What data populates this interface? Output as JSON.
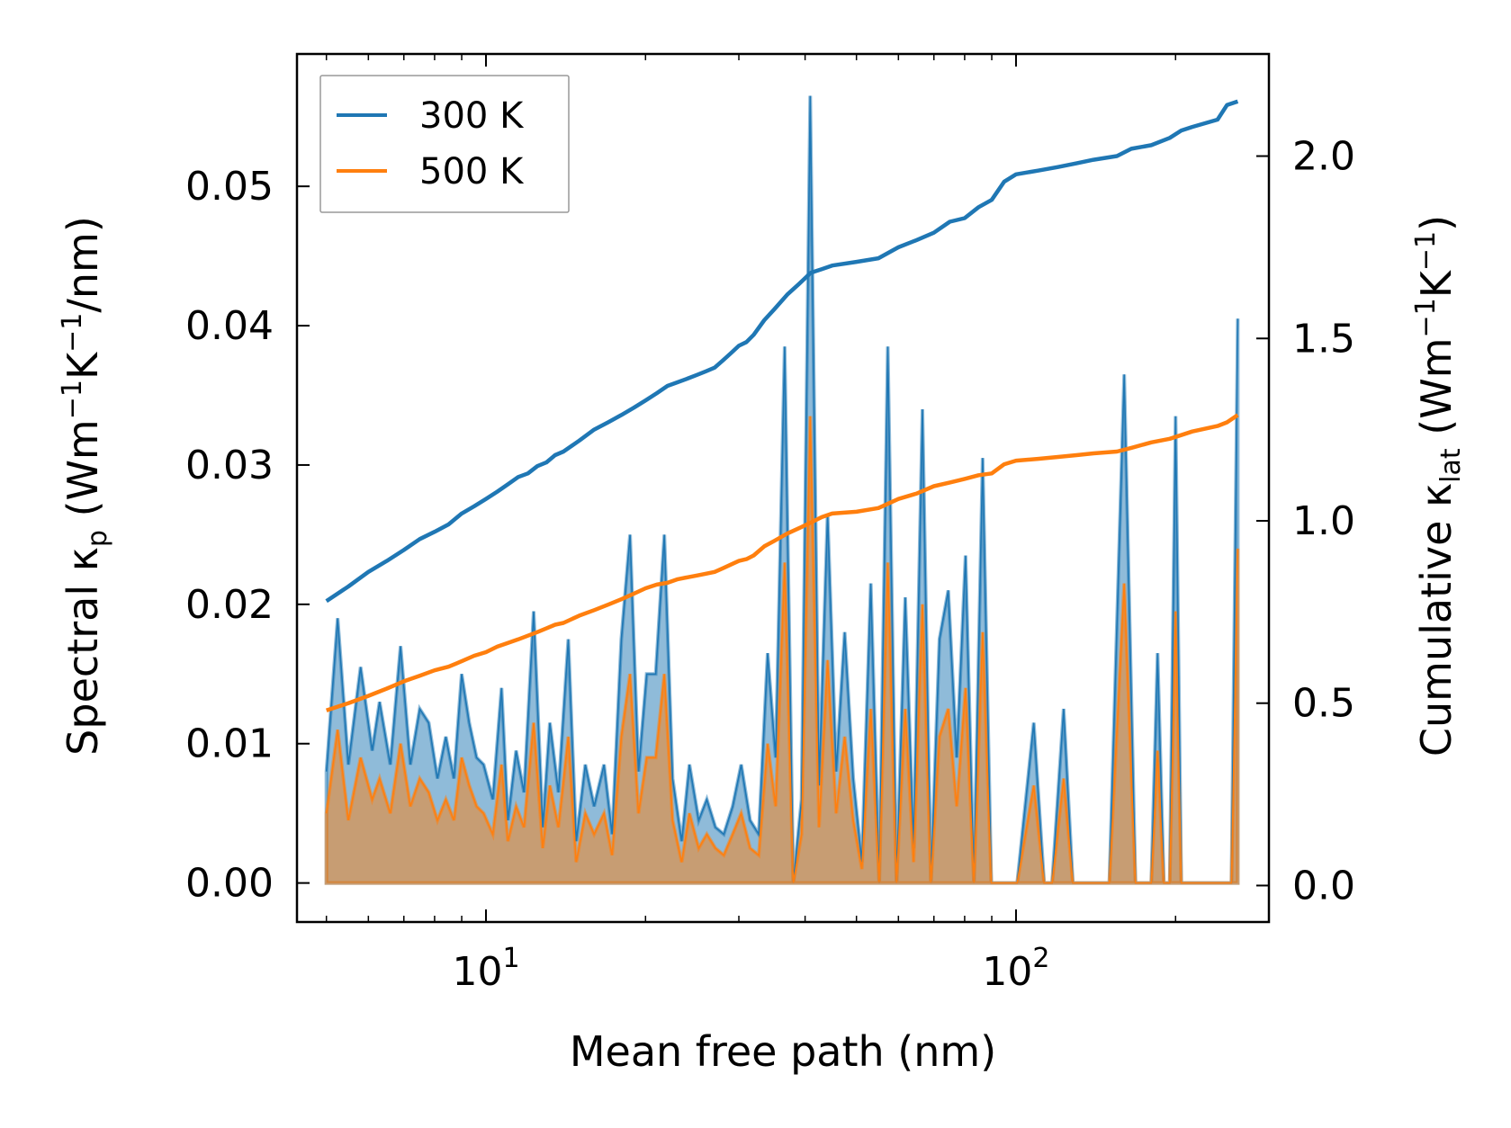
{
  "chart_data": {
    "type": "line",
    "xscale": "log",
    "xlabel": "Mean free path (nm)",
    "ylabel_left": {
      "main": "Spectral κ",
      "sub": "p",
      "unit_pre": " (Wm",
      "sup1": "−1",
      "mid": "K",
      "sup2": "−1",
      "unit_post": "/nm)"
    },
    "ylabel_right": {
      "main": "Cumulative κ",
      "sub": "lat",
      "unit_pre": " (Wm",
      "sup1": "−1",
      "mid": "K",
      "sup2": "−1",
      "unit_post": ")"
    },
    "xlim": [
      4.4,
      300
    ],
    "ylim_left": [
      -0.0028,
      0.0595
    ],
    "ylim_right": [
      -0.1,
      2.28
    ],
    "x_ticks": [
      {
        "value": 10,
        "base": "10",
        "exp": "1"
      },
      {
        "value": 100,
        "base": "10",
        "exp": "2"
      }
    ],
    "y_ticks_left": [
      {
        "value": 0.0,
        "label": "0.00"
      },
      {
        "value": 0.01,
        "label": "0.01"
      },
      {
        "value": 0.02,
        "label": "0.02"
      },
      {
        "value": 0.03,
        "label": "0.03"
      },
      {
        "value": 0.04,
        "label": "0.04"
      },
      {
        "value": 0.05,
        "label": "0.05"
      }
    ],
    "y_ticks_right": [
      {
        "value": 0.0,
        "label": "0.0"
      },
      {
        "value": 0.5,
        "label": "0.5"
      },
      {
        "value": 1.0,
        "label": "1.0"
      },
      {
        "value": 1.5,
        "label": "1.5"
      },
      {
        "value": 2.0,
        "label": "2.0"
      }
    ],
    "legend": [
      {
        "name": "300 K",
        "color": "#1f77b4"
      },
      {
        "name": "500 K",
        "color": "#ff7f0e"
      }
    ],
    "series": [
      {
        "name": "300 K",
        "color": "#1f77b4",
        "spectral": {
          "x": [
            5.0,
            5.25,
            5.5,
            5.8,
            6.1,
            6.3,
            6.6,
            6.9,
            7.2,
            7.5,
            7.8,
            8.1,
            8.4,
            8.7,
            9.0,
            9.3,
            9.6,
            9.9,
            10.3,
            10.7,
            11.0,
            11.4,
            11.8,
            12.3,
            12.8,
            13.2,
            13.7,
            14.3,
            14.8,
            15.4,
            16.0,
            16.7,
            17.3,
            18.0,
            18.7,
            19.4,
            20.1,
            20.9,
            21.7,
            22.5,
            23.4,
            24.2,
            25.2,
            26.1,
            27.1,
            28.1,
            29.2,
            30.3,
            31.5,
            32.7,
            34.0,
            35.2,
            36.6,
            38.0,
            39.4,
            40.9,
            42.5,
            44.1,
            45.8,
            47.5,
            49.3,
            51.2,
            53.2,
            55.2,
            57.3,
            59.5,
            61.8,
            64.1,
            66.6,
            69.1,
            71.7,
            74.5,
            77.3,
            80.3,
            83.3,
            86.5,
            89.8,
            93.2,
            96.8,
            100.5,
            108,
            113,
            117,
            123,
            128,
            133,
            140,
            150,
            160,
            168,
            175,
            180,
            185,
            190,
            195,
            200,
            205,
            212,
            230,
            255,
            262
          ],
          "values": [
            0.008,
            0.019,
            0.0085,
            0.0155,
            0.0095,
            0.013,
            0.0085,
            0.017,
            0.0085,
            0.0125,
            0.0115,
            0.0075,
            0.0105,
            0.0075,
            0.015,
            0.0115,
            0.009,
            0.0085,
            0.006,
            0.014,
            0.0045,
            0.0095,
            0.0065,
            0.0195,
            0.004,
            0.0115,
            0.0065,
            0.0175,
            0.003,
            0.0085,
            0.0055,
            0.0085,
            0.0035,
            0.0175,
            0.025,
            0.008,
            0.015,
            0.015,
            0.025,
            0.0075,
            0.003,
            0.0085,
            0.0045,
            0.006,
            0.004,
            0.0035,
            0.0055,
            0.0085,
            0.0045,
            0.0035,
            0.0165,
            0.009,
            0.0385,
            0.0,
            0.006,
            0.0565,
            0.007,
            0.0265,
            0.008,
            0.018,
            0.0075,
            0.0015,
            0.0215,
            0.0,
            0.0385,
            0.0,
            0.0205,
            0.0025,
            0.034,
            0.0,
            0.0175,
            0.021,
            0.009,
            0.0235,
            0.0,
            0.0305,
            0.0,
            0.0,
            0.0,
            0.0,
            0.0115,
            0.0,
            0.0,
            0.0125,
            0.0,
            0.0,
            0.0,
            0.0,
            0.0365,
            0.0,
            0.0,
            0.0,
            0.0165,
            0.0,
            0.0,
            0.0335,
            0.0,
            0.0,
            0.0,
            0.0,
            0.0405
          ]
        },
        "cumulative": {
          "x": [
            5.0,
            5.5,
            6.0,
            6.5,
            7.0,
            7.5,
            8.0,
            8.5,
            9.0,
            9.5,
            10.0,
            10.5,
            11.0,
            11.5,
            12.0,
            12.5,
            13.0,
            13.5,
            14.0,
            15.0,
            16.0,
            17.0,
            18.0,
            19.0,
            20.0,
            21.0,
            22.0,
            23.0,
            24.0,
            25.0,
            26.0,
            27.0,
            28.0,
            29.0,
            30.0,
            31.0,
            32.0,
            33.5,
            35.0,
            37.0,
            39.0,
            41.0,
            43.0,
            45.0,
            50.0,
            55.0,
            60.0,
            65.0,
            70.0,
            75.0,
            80.0,
            85.0,
            90.0,
            95.0,
            100.0,
            110.0,
            120.0,
            130.0,
            140.0,
            155.0,
            165.0,
            180.0,
            195.0,
            205.0,
            215.0,
            240.0,
            250.0,
            262.0
          ],
          "values": [
            0.78,
            0.82,
            0.86,
            0.89,
            0.92,
            0.95,
            0.97,
            0.99,
            1.02,
            1.04,
            1.06,
            1.08,
            1.1,
            1.12,
            1.13,
            1.15,
            1.16,
            1.18,
            1.19,
            1.22,
            1.25,
            1.27,
            1.29,
            1.31,
            1.33,
            1.35,
            1.37,
            1.38,
            1.39,
            1.4,
            1.41,
            1.42,
            1.44,
            1.46,
            1.48,
            1.49,
            1.51,
            1.55,
            1.58,
            1.62,
            1.65,
            1.68,
            1.69,
            1.7,
            1.71,
            1.72,
            1.75,
            1.77,
            1.79,
            1.82,
            1.83,
            1.86,
            1.88,
            1.93,
            1.95,
            1.96,
            1.97,
            1.98,
            1.99,
            2.0,
            2.02,
            2.03,
            2.05,
            2.07,
            2.08,
            2.1,
            2.14,
            2.15
          ]
        }
      },
      {
        "name": "500 K",
        "color": "#ff7f0e",
        "spectral": {
          "x": [
            5.0,
            5.25,
            5.5,
            5.8,
            6.1,
            6.3,
            6.6,
            6.9,
            7.2,
            7.5,
            7.8,
            8.1,
            8.4,
            8.7,
            9.0,
            9.3,
            9.6,
            9.9,
            10.3,
            10.7,
            11.0,
            11.4,
            11.8,
            12.3,
            12.8,
            13.2,
            13.7,
            14.3,
            14.8,
            15.4,
            16.0,
            16.7,
            17.3,
            18.0,
            18.7,
            19.4,
            20.1,
            20.9,
            21.7,
            22.5,
            23.4,
            24.2,
            25.2,
            26.1,
            27.1,
            28.1,
            29.2,
            30.3,
            31.5,
            32.7,
            34.0,
            35.2,
            36.6,
            38.0,
            39.4,
            40.9,
            42.5,
            44.1,
            45.8,
            47.5,
            49.3,
            51.2,
            53.2,
            55.2,
            57.3,
            59.5,
            61.8,
            64.1,
            66.6,
            69.1,
            71.7,
            74.5,
            77.3,
            80.3,
            83.3,
            86.5,
            89.8,
            93.2,
            96.8,
            100.5,
            108,
            113,
            117,
            123,
            128,
            133,
            140,
            150,
            160,
            168,
            175,
            180,
            185,
            190,
            195,
            200,
            205,
            212,
            230,
            255,
            262
          ],
          "values": [
            0.005,
            0.011,
            0.0045,
            0.009,
            0.006,
            0.0075,
            0.005,
            0.01,
            0.0055,
            0.0075,
            0.0065,
            0.0045,
            0.006,
            0.0045,
            0.009,
            0.007,
            0.0055,
            0.005,
            0.0035,
            0.0085,
            0.003,
            0.0055,
            0.004,
            0.0115,
            0.0025,
            0.007,
            0.004,
            0.0105,
            0.0015,
            0.005,
            0.0035,
            0.005,
            0.002,
            0.0105,
            0.015,
            0.005,
            0.009,
            0.009,
            0.015,
            0.0045,
            0.0015,
            0.005,
            0.0025,
            0.0035,
            0.0025,
            0.002,
            0.0035,
            0.005,
            0.0025,
            0.002,
            0.01,
            0.0055,
            0.023,
            0.0,
            0.0035,
            0.0335,
            0.004,
            0.016,
            0.005,
            0.0105,
            0.0045,
            0.001,
            0.0125,
            0.0,
            0.023,
            0.0,
            0.0125,
            0.0015,
            0.02,
            0.0,
            0.0105,
            0.0125,
            0.0055,
            0.014,
            0.0,
            0.018,
            0.0,
            0.0,
            0.0,
            0.0,
            0.007,
            0.0,
            0.0,
            0.0075,
            0.0,
            0.0,
            0.0,
            0.0,
            0.0215,
            0.0,
            0.0,
            0.0,
            0.0095,
            0.0,
            0.0,
            0.0195,
            0.0,
            0.0,
            0.0,
            0.0,
            0.024
          ]
        },
        "cumulative": {
          "x": [
            5.0,
            5.5,
            6.0,
            6.5,
            7.0,
            7.5,
            8.0,
            8.5,
            9.0,
            9.5,
            10.0,
            10.5,
            11.0,
            11.5,
            12.0,
            12.5,
            13.0,
            13.5,
            14.0,
            15.0,
            16.0,
            17.0,
            18.0,
            19.0,
            20.0,
            21.0,
            22.0,
            23.0,
            24.0,
            25.0,
            26.0,
            27.0,
            28.0,
            29.0,
            30.0,
            31.0,
            32.0,
            33.5,
            35.0,
            37.0,
            39.0,
            41.0,
            43.0,
            45.0,
            50.0,
            55.0,
            60.0,
            65.0,
            70.0,
            75.0,
            80.0,
            85.0,
            90.0,
            95.0,
            100.0,
            110.0,
            120.0,
            130.0,
            140.0,
            155.0,
            165.0,
            180.0,
            195.0,
            205.0,
            215.0,
            240.0,
            250.0,
            262.0
          ],
          "values": [
            0.48,
            0.5,
            0.52,
            0.54,
            0.56,
            0.575,
            0.59,
            0.6,
            0.615,
            0.63,
            0.64,
            0.655,
            0.665,
            0.675,
            0.685,
            0.695,
            0.705,
            0.715,
            0.72,
            0.74,
            0.755,
            0.77,
            0.785,
            0.8,
            0.815,
            0.825,
            0.83,
            0.84,
            0.845,
            0.85,
            0.855,
            0.86,
            0.87,
            0.88,
            0.89,
            0.895,
            0.905,
            0.93,
            0.945,
            0.965,
            0.98,
            0.995,
            1.01,
            1.02,
            1.025,
            1.035,
            1.06,
            1.075,
            1.095,
            1.105,
            1.115,
            1.125,
            1.13,
            1.155,
            1.165,
            1.17,
            1.175,
            1.18,
            1.185,
            1.19,
            1.2,
            1.215,
            1.225,
            1.235,
            1.245,
            1.26,
            1.27,
            1.29
          ]
        }
      }
    ]
  }
}
